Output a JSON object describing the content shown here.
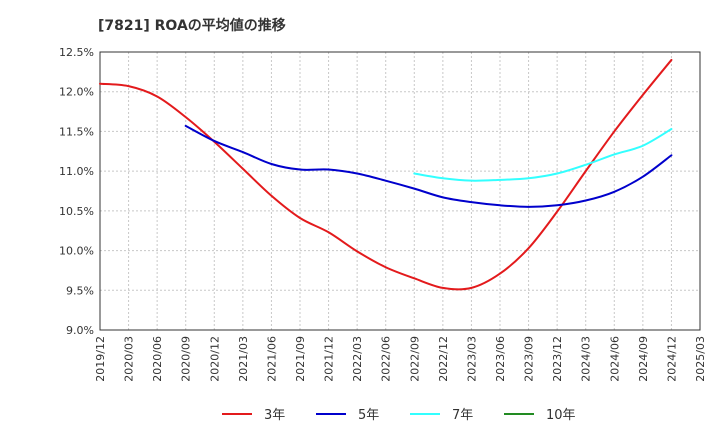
{
  "title": "[7821]  ROAの平均値の推移",
  "colors": {
    "grid": "#c8c8c8",
    "axis": "#333333",
    "series": [
      "#e31a1c",
      "#0000cc",
      "#33ffff",
      "#228b22"
    ]
  },
  "chart_data": {
    "type": "line",
    "title": "[7821]  ROAの平均値の推移",
    "xlabel": "",
    "ylabel": "",
    "ylim": [
      9.0,
      12.5
    ],
    "grid": true,
    "legend_position": "bottom",
    "x_ticks": [
      "2019/12",
      "2020/03",
      "2020/06",
      "2020/09",
      "2020/12",
      "2021/03",
      "2021/06",
      "2021/09",
      "2021/12",
      "2022/03",
      "2022/06",
      "2022/09",
      "2022/12",
      "2023/03",
      "2023/06",
      "2023/09",
      "2023/12",
      "2024/03",
      "2024/06",
      "2024/09",
      "2024/12",
      "2025/03"
    ],
    "y_ticks": [
      "9.0%",
      "9.5%",
      "10.0%",
      "10.5%",
      "11.0%",
      "11.5%",
      "12.0%",
      "12.5%"
    ],
    "y_tick_values": [
      9.0,
      9.5,
      10.0,
      10.5,
      11.0,
      11.5,
      12.0,
      12.5
    ],
    "series": [
      {
        "name": "3年",
        "x": [
          "2019/12",
          "2020/03",
          "2020/06",
          "2020/09",
          "2020/12",
          "2021/03",
          "2021/06",
          "2021/09",
          "2021/12",
          "2022/03",
          "2022/06",
          "2022/09",
          "2022/12",
          "2023/03",
          "2023/06",
          "2023/09",
          "2023/12",
          "2024/03",
          "2024/06",
          "2024/09",
          "2024/12"
        ],
        "values": [
          12.1,
          12.07,
          11.94,
          11.68,
          11.37,
          11.03,
          10.69,
          10.41,
          10.23,
          9.99,
          9.79,
          9.65,
          9.53,
          9.53,
          9.71,
          10.03,
          10.49,
          11.0,
          11.5,
          11.96,
          12.4
        ]
      },
      {
        "name": "5年",
        "x": [
          "2020/09",
          "2020/12",
          "2021/03",
          "2021/06",
          "2021/09",
          "2021/12",
          "2022/03",
          "2022/06",
          "2022/09",
          "2022/12",
          "2023/03",
          "2023/06",
          "2023/09",
          "2023/12",
          "2024/03",
          "2024/06",
          "2024/09",
          "2024/12"
        ],
        "values": [
          11.57,
          11.38,
          11.24,
          11.09,
          11.02,
          11.02,
          10.97,
          10.88,
          10.78,
          10.67,
          10.61,
          10.57,
          10.55,
          10.57,
          10.63,
          10.74,
          10.93,
          11.2
        ]
      },
      {
        "name": "7年",
        "x": [
          "2022/09",
          "2022/12",
          "2023/03",
          "2023/06",
          "2023/09",
          "2023/12",
          "2024/03",
          "2024/06",
          "2024/09",
          "2024/12"
        ],
        "values": [
          10.97,
          10.91,
          10.88,
          10.89,
          10.91,
          10.97,
          11.08,
          11.21,
          11.32,
          11.53
        ]
      },
      {
        "name": "10年",
        "x": [],
        "values": []
      }
    ]
  }
}
